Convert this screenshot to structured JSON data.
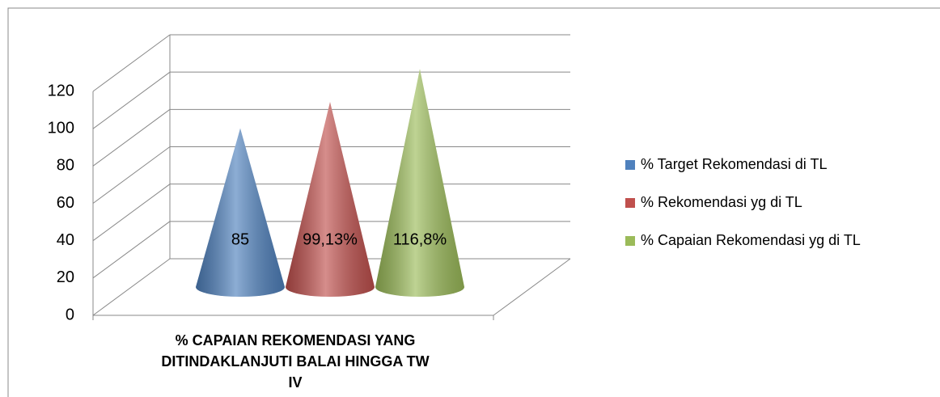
{
  "chart_data": {
    "type": "cone",
    "categories": [
      "% CAPAIAN REKOMENDASI YANG DITINDAKLANJUTI BALAI HINGGA TW IV"
    ],
    "series": [
      {
        "name": "% Target Rekomendasi di TL",
        "color": "#4f81bd",
        "values": [
          85
        ],
        "value_labels": [
          "85"
        ]
      },
      {
        "name": "% Rekomendasi yg di TL",
        "color": "#c0504d",
        "values": [
          99.13
        ],
        "value_labels": [
          "99,13%"
        ]
      },
      {
        "name": "% Capaian Rekomendasi yg di TL",
        "color": "#9bbb59",
        "values": [
          116.8
        ],
        "value_labels": [
          "116,8%"
        ]
      }
    ],
    "ylim": [
      0,
      120
    ],
    "yticks": [
      0,
      20,
      40,
      60,
      80,
      100,
      120
    ],
    "grid": true,
    "legend": "right"
  }
}
